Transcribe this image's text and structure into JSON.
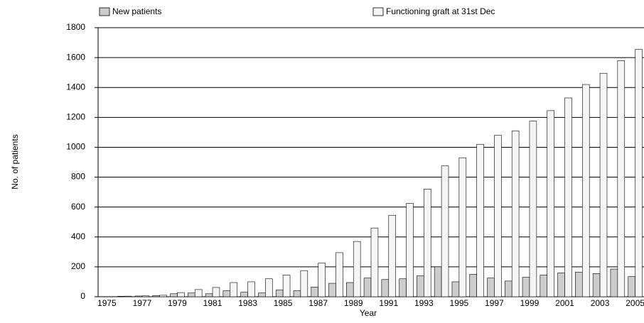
{
  "chart_data": {
    "type": "bar",
    "y_label": "No. of patients",
    "x_label": "Year",
    "categories": [
      "1975",
      null,
      "1977",
      null,
      "1979",
      null,
      "1981",
      null,
      "1983",
      null,
      "1985",
      null,
      "1987",
      null,
      "1989",
      null,
      "1991",
      null,
      "1993",
      null,
      "1995",
      null,
      "1997",
      null,
      "1999",
      null,
      "2001",
      null,
      "2003",
      null,
      "2005"
    ],
    "series": [
      {
        "name": "New patients",
        "color": "#cccccc",
        "values": [
          1,
          3,
          5,
          8,
          20,
          25,
          20,
          40,
          30,
          25,
          45,
          40,
          65,
          90,
          95,
          125,
          115,
          120,
          140,
          200,
          100,
          150,
          125,
          105,
          130,
          145,
          160,
          165,
          155,
          185,
          135
        ]
      },
      {
        "name": "Functioning graft at 31st Dec",
        "color": "#f5f5f5",
        "values": [
          1,
          4,
          6,
          10,
          28,
          48,
          62,
          95,
          100,
          120,
          145,
          175,
          225,
          295,
          370,
          460,
          545,
          625,
          720,
          875,
          930,
          1020,
          1080,
          1110,
          1175,
          1245,
          1330,
          1420,
          1495,
          1580,
          1655
        ]
      }
    ],
    "ylim": [
      0,
      1800
    ],
    "yticks": [
      0,
      200,
      400,
      600,
      800,
      1000,
      1200,
      1400,
      1600,
      1800
    ],
    "grid": true
  }
}
